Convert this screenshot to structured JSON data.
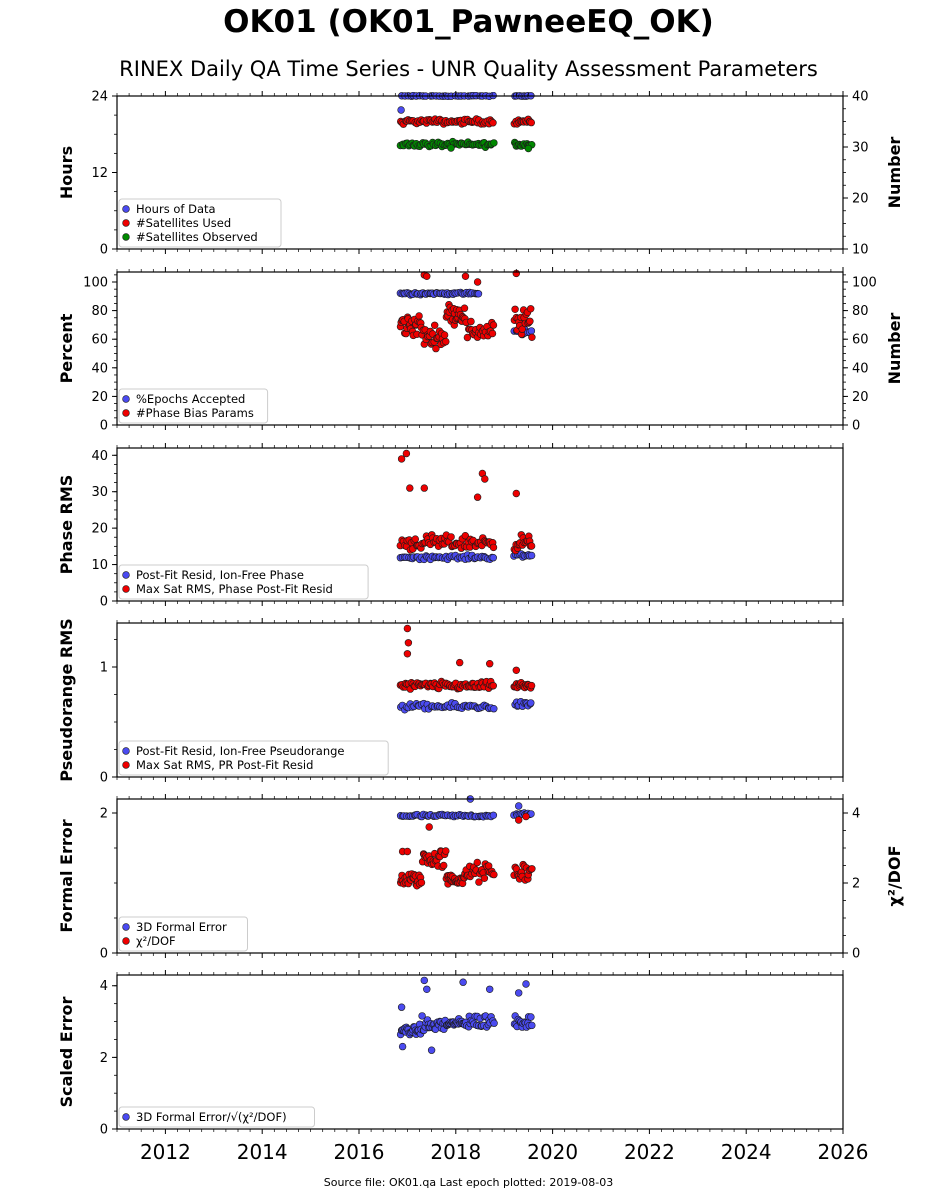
{
  "header": {
    "title": "OK01 (OK01_PawneeEQ_OK)",
    "subtitle": "RINEX Daily QA Time Series - UNR Quality Assessment Parameters"
  },
  "footer": {
    "text": "Source file: OK01.qa Last epoch plotted: 2019-08-03"
  },
  "colors": {
    "blue": "#4b4bf0",
    "red": "#ee0000",
    "green": "#008800",
    "edge": "#1a1a1a"
  },
  "chart_data": [
    {
      "type": "scatter",
      "ylabel": "Hours",
      "ylim": [
        0,
        24
      ],
      "yticks": [
        0,
        12,
        24
      ],
      "y2label": "Number",
      "y2lim": [
        10,
        40
      ],
      "y2ticks": [
        10,
        20,
        30,
        40
      ],
      "xlim": [
        2011.0,
        2026.0
      ],
      "legend_position": "lower-left",
      "series": [
        {
          "name": "Hours of Data",
          "color": "blue",
          "axis": "left",
          "spans": [
            [
              2016.85,
              2018.8,
              24,
              0.1,
              30
            ],
            [
              2019.2,
              2019.58,
              24,
              0.1,
              8
            ]
          ],
          "points": [
            [
              2016.87,
              21.8
            ]
          ]
        },
        {
          "name": "#Satellites Used",
          "color": "red",
          "axis": "right",
          "spans": [
            [
              2016.85,
              2018.8,
              35.0,
              0.7,
              60
            ],
            [
              2019.2,
              2019.58,
              35.0,
              0.7,
              15
            ]
          ]
        },
        {
          "name": "#Satellites Observed",
          "color": "green",
          "axis": "right",
          "spans": [
            [
              2016.85,
              2018.8,
              30.5,
              0.7,
              60
            ],
            [
              2019.2,
              2019.58,
              30.5,
              0.9,
              15
            ]
          ],
          "points": [
            [
              2017.9,
              29.8
            ],
            [
              2019.5,
              29.7
            ]
          ]
        }
      ]
    },
    {
      "type": "scatter",
      "ylabel": "Percent",
      "ylim": [
        0,
        107
      ],
      "yticks": [
        0,
        20,
        40,
        60,
        80,
        100
      ],
      "y2label": "Number",
      "y2lim": [
        0,
        107
      ],
      "y2ticks": [
        0,
        20,
        40,
        60,
        80,
        100
      ],
      "xlim": [
        2011.0,
        2026.0
      ],
      "legend_position": "lower-left",
      "series": [
        {
          "name": "%Epochs Accepted",
          "color": "blue",
          "axis": "left",
          "spans": [
            [
              2016.85,
              2018.5,
              92,
              1.2,
              50
            ],
            [
              2019.2,
              2019.58,
              65,
              3,
              10
            ]
          ]
        },
        {
          "name": "#Phase Bias Params",
          "color": "red",
          "axis": "right",
          "spans": [
            [
              2016.85,
              2017.3,
              70,
              12,
              25
            ],
            [
              2017.3,
              2017.8,
              62,
              10,
              25
            ],
            [
              2017.8,
              2018.2,
              78,
              10,
              25
            ],
            [
              2018.2,
              2018.8,
              66,
              10,
              25
            ],
            [
              2019.2,
              2019.58,
              72,
              14,
              20
            ]
          ],
          "points": [
            [
              2017.35,
              105
            ],
            [
              2017.4,
              104
            ],
            [
              2018.2,
              104
            ],
            [
              2019.25,
              106
            ],
            [
              2018.45,
              100
            ]
          ]
        }
      ]
    },
    {
      "type": "scatter",
      "ylabel": "Phase RMS",
      "ylim": [
        0,
        42
      ],
      "yticks": [
        0,
        10,
        20,
        30,
        40
      ],
      "xlim": [
        2011.0,
        2026.0
      ],
      "legend_position": "lower-left",
      "series": [
        {
          "name": "Post-Fit Resid, Ion-Free Phase",
          "color": "blue",
          "axis": "left",
          "spans": [
            [
              2016.85,
              2018.8,
              12.0,
              0.8,
              50
            ],
            [
              2019.2,
              2019.58,
              12.5,
              1.0,
              12
            ]
          ]
        },
        {
          "name": "Max Sat RMS, Phase Post-Fit Resid",
          "color": "red",
          "axis": "left",
          "spans": [
            [
              2016.85,
              2018.8,
              16.0,
              2.8,
              70
            ],
            [
              2019.2,
              2019.58,
              16.0,
              3.0,
              18
            ]
          ],
          "points": [
            [
              2016.88,
              39
            ],
            [
              2016.98,
              40.5
            ],
            [
              2017.05,
              31
            ],
            [
              2017.35,
              31
            ],
            [
              2018.55,
              35
            ],
            [
              2018.6,
              33.5
            ],
            [
              2019.25,
              29.5
            ],
            [
              2018.45,
              28.5
            ]
          ]
        }
      ]
    },
    {
      "type": "scatter",
      "ylabel": "Pseudorange RMS",
      "ylim": [
        0,
        1.4
      ],
      "yticks": [
        0,
        1
      ],
      "xlim": [
        2011.0,
        2026.0
      ],
      "legend_position": "lower-left",
      "series": [
        {
          "name": "Post-Fit Resid, Ion-Free Pseudorange",
          "color": "blue",
          "axis": "left",
          "spans": [
            [
              2016.85,
              2018.8,
              0.64,
              0.04,
              50
            ],
            [
              2019.2,
              2019.58,
              0.66,
              0.04,
              12
            ]
          ]
        },
        {
          "name": "Max Sat RMS, PR Post-Fit Resid",
          "color": "red",
          "axis": "left",
          "spans": [
            [
              2016.85,
              2018.8,
              0.83,
              0.05,
              70
            ],
            [
              2019.2,
              2019.58,
              0.83,
              0.05,
              18
            ]
          ],
          "points": [
            [
              2017.0,
              1.35
            ],
            [
              2017.02,
              1.22
            ],
            [
              2017.0,
              1.12
            ],
            [
              2018.08,
              1.04
            ],
            [
              2018.7,
              1.03
            ],
            [
              2019.25,
              0.97
            ]
          ]
        }
      ]
    },
    {
      "type": "scatter",
      "ylabel": "Formal Error",
      "ylim": [
        0,
        2.2
      ],
      "yticks": [
        0,
        2
      ],
      "y2label": "χ²/DOF",
      "y2lim": [
        0,
        4.4
      ],
      "y2ticks": [
        0,
        2,
        4
      ],
      "xlim": [
        2011.0,
        2026.0
      ],
      "legend_position": "lower-left",
      "series": [
        {
          "name": "3D Formal Error",
          "color": "blue",
          "axis": "left",
          "spans": [
            [
              2016.85,
              2018.8,
              1.96,
              0.03,
              50
            ],
            [
              2019.2,
              2019.58,
              1.98,
              0.03,
              12
            ]
          ],
          "points": [
            [
              2018.3,
              2.2
            ],
            [
              2019.3,
              2.1
            ]
          ]
        },
        {
          "name": "χ²/DOF",
          "color": "red",
          "axis": "right",
          "spans": [
            [
              2016.85,
              2017.3,
              2.1,
              0.3,
              25
            ],
            [
              2017.3,
              2017.8,
              2.7,
              0.4,
              25
            ],
            [
              2017.8,
              2018.2,
              2.1,
              0.25,
              25
            ],
            [
              2018.2,
              2018.8,
              2.3,
              0.4,
              25
            ],
            [
              2019.2,
              2019.58,
              2.3,
              0.4,
              18
            ]
          ],
          "points": [
            [
              2016.9,
              2.9
            ],
            [
              2017.0,
              2.9
            ],
            [
              2017.45,
              3.6
            ],
            [
              2019.3,
              3.8
            ],
            [
              2019.45,
              3.9
            ]
          ]
        }
      ]
    },
    {
      "type": "scatter",
      "ylabel": "Scaled Error",
      "ylim": [
        0,
        4.3
      ],
      "yticks": [
        0,
        2,
        4
      ],
      "xlabel": "",
      "xlim": [
        2011.0,
        2026.0
      ],
      "xticks": [
        2012,
        2014,
        2016,
        2018,
        2020,
        2022,
        2024,
        2026
      ],
      "legend_position": "lower-left",
      "series": [
        {
          "name": "3D Formal Error/√(χ²/DOF)",
          "color": "blue",
          "axis": "left",
          "spans": [
            [
              2016.85,
              2017.3,
              2.75,
              0.2,
              25
            ],
            [
              2017.3,
              2017.8,
              2.9,
              0.35,
              25
            ],
            [
              2017.8,
              2018.2,
              2.95,
              0.15,
              25
            ],
            [
              2018.2,
              2018.8,
              3.0,
              0.3,
              25
            ],
            [
              2019.2,
              2019.58,
              3.0,
              0.3,
              18
            ]
          ],
          "points": [
            [
              2016.88,
              3.4
            ],
            [
              2017.35,
              4.15
            ],
            [
              2017.4,
              3.9
            ],
            [
              2018.15,
              4.1
            ],
            [
              2018.7,
              3.9
            ],
            [
              2019.45,
              4.05
            ],
            [
              2019.3,
              3.8
            ],
            [
              2017.5,
              2.2
            ],
            [
              2016.9,
              2.3
            ]
          ]
        }
      ]
    }
  ]
}
